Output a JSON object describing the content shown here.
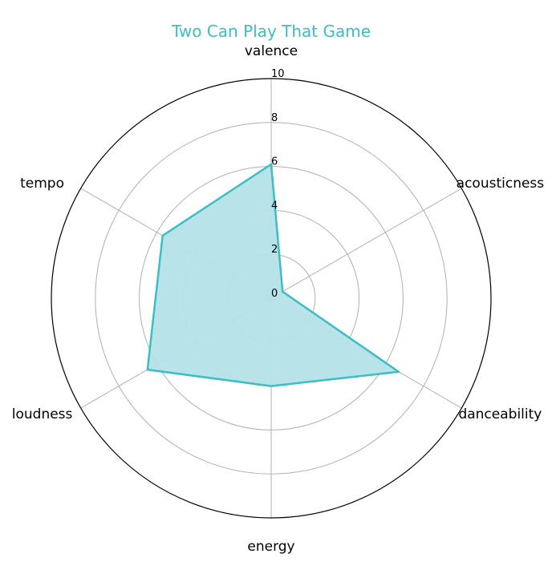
{
  "chart_data": {
    "type": "radar",
    "title": "Two Can Play That Game",
    "axes": [
      "valence",
      "acousticness",
      "danceability",
      "energy",
      "loudness",
      "tempo"
    ],
    "values": [
      6.1,
      0.6,
      6.7,
      4.0,
      6.5,
      5.7
    ],
    "rlim": [
      0,
      10
    ],
    "rticks": [
      "0",
      "2",
      "4",
      "6",
      "8",
      "10"
    ],
    "grid": true,
    "colors": {
      "line": "#3dbdc4",
      "fill": "#b3e2e8",
      "title": "#3dbdc4"
    }
  }
}
